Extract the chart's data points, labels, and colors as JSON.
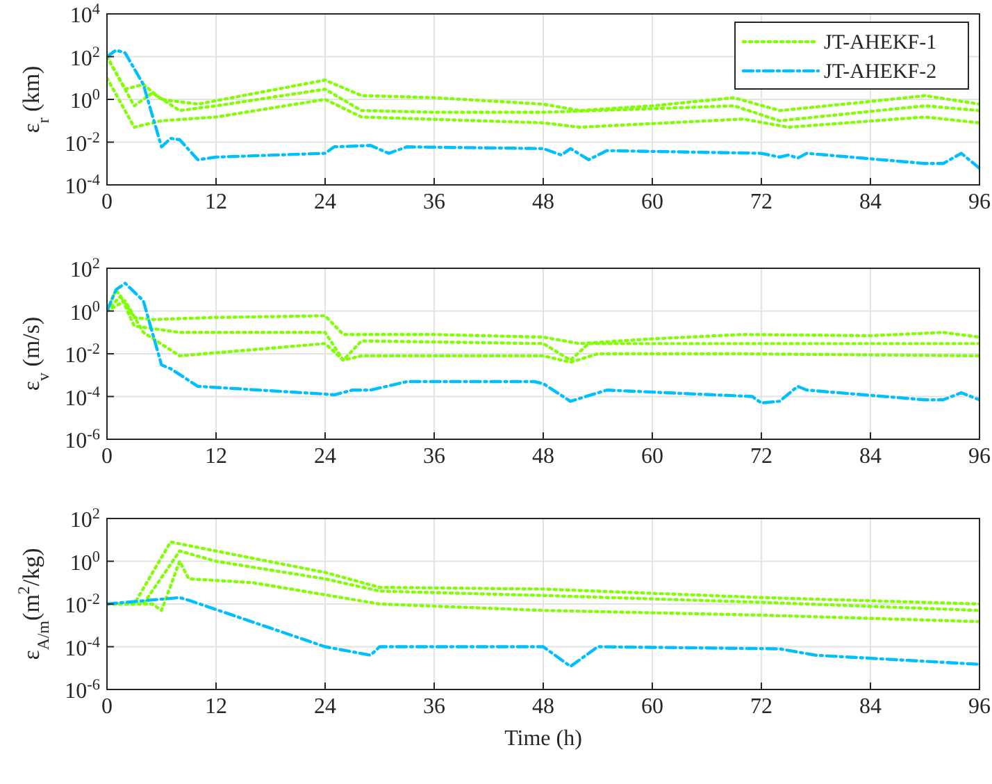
{
  "chart_data": [
    {
      "type": "line",
      "ylabel": "ε$_{r}$  (km)",
      "log": "y",
      "grid": true,
      "legend": "top right",
      "xlim": [
        0,
        96
      ],
      "xticks": [
        0,
        12,
        24,
        36,
        48,
        60,
        72,
        84,
        96
      ],
      "ylim": [
        0.0001,
        10000
      ],
      "yticks": [
        {
          "value": 0.0001,
          "label": "10$^{-4}$"
        },
        {
          "value": 0.01,
          "label": "10$^{-2}$"
        },
        {
          "value": 1,
          "label": "10$^{0}$"
        },
        {
          "value": 100,
          "label": "10$^{2}$"
        },
        {
          "value": 10000,
          "label": "10$^{4}$"
        }
      ],
      "series": [
        {
          "name": "JT-AHEKF-1",
          "color": "#7fff00",
          "line_style": "dotted",
          "x": [
            0,
            3,
            5,
            8,
            12,
            24,
            28,
            36,
            48,
            54,
            69,
            74,
            90,
            96
          ],
          "values": [
            100,
            0.5,
            2,
            0.3,
            0.5,
            3,
            0.3,
            0.25,
            0.25,
            0.3,
            0.5,
            0.1,
            0.5,
            0.3
          ]
        },
        {
          "color": "#7fff00",
          "line_style": "dotted",
          "x": [
            0,
            2,
            4,
            6,
            10,
            24,
            28,
            36,
            48,
            52,
            60,
            69,
            74,
            84,
            90,
            96
          ],
          "values": [
            100,
            3,
            5,
            1,
            0.6,
            8,
            1.5,
            1.2,
            0.6,
            0.3,
            0.5,
            1.2,
            0.3,
            0.8,
            1.5,
            0.6
          ]
        },
        {
          "color": "#7fff00",
          "line_style": "dotted",
          "x": [
            0,
            3,
            6,
            12,
            24,
            28,
            48,
            52,
            70,
            75,
            90,
            96
          ],
          "values": [
            10,
            0.05,
            0.1,
            0.15,
            1,
            0.15,
            0.08,
            0.05,
            0.12,
            0.05,
            0.15,
            0.08
          ]
        },
        {
          "name": "JT-AHEKF-2",
          "color": "#00bfff",
          "line_style": "dashed",
          "x": [
            0,
            1,
            2,
            4,
            6,
            7,
            8,
            10,
            12,
            24,
            25,
            29,
            31,
            33,
            48,
            50,
            51,
            53,
            55,
            72,
            74,
            75,
            76,
            77,
            90,
            92,
            94,
            96
          ],
          "values": [
            100,
            200,
            150,
            5,
            0.006,
            0.015,
            0.013,
            0.0015,
            0.002,
            0.003,
            0.006,
            0.007,
            0.003,
            0.006,
            0.005,
            0.0025,
            0.005,
            0.0015,
            0.004,
            0.003,
            0.002,
            0.0025,
            0.0018,
            0.003,
            0.001,
            0.001,
            0.003,
            0.0006
          ]
        }
      ]
    },
    {
      "type": "line",
      "ylabel": "ε$_{v}$  (m/s)",
      "log": "y",
      "grid": true,
      "xlim": [
        0,
        96
      ],
      "xticks": [
        0,
        12,
        24,
        36,
        48,
        60,
        72,
        84,
        96
      ],
      "ylim": [
        1e-06,
        100
      ],
      "yticks": [
        {
          "value": 1e-06,
          "label": "10$^{-6}$"
        },
        {
          "value": 0.0001,
          "label": "10$^{-4}$"
        },
        {
          "value": 0.01,
          "label": "10$^{-2}$"
        },
        {
          "value": 1,
          "label": "10$^{0}$"
        },
        {
          "value": 100,
          "label": "10$^{2}$"
        }
      ],
      "series": [
        {
          "color": "#7fff00",
          "line_style": "dotted",
          "x": [
            0,
            1,
            3,
            5,
            12,
            24,
            26,
            36,
            48,
            52,
            60,
            70,
            84,
            92,
            96
          ],
          "values": [
            1,
            10,
            0.5,
            0.4,
            0.5,
            0.6,
            0.08,
            0.08,
            0.06,
            0.03,
            0.05,
            0.08,
            0.07,
            0.1,
            0.06
          ]
        },
        {
          "color": "#7fff00",
          "line_style": "dotted",
          "x": [
            0,
            1.5,
            3,
            8,
            24,
            26,
            28,
            48,
            51,
            53,
            96
          ],
          "values": [
            1,
            5,
            0.2,
            0.1,
            0.1,
            0.005,
            0.04,
            0.03,
            0.005,
            0.03,
            0.03
          ]
        },
        {
          "color": "#7fff00",
          "line_style": "dotted",
          "x": [
            0,
            2,
            4,
            8,
            24,
            26,
            28,
            48,
            51,
            54,
            70,
            96
          ],
          "values": [
            1,
            3,
            0.1,
            0.008,
            0.03,
            0.005,
            0.008,
            0.008,
            0.004,
            0.01,
            0.01,
            0.008
          ]
        },
        {
          "color": "#00bfff",
          "line_style": "dashed",
          "x": [
            0,
            1,
            2,
            4,
            6,
            7,
            10,
            24,
            25,
            27,
            29,
            33,
            47,
            48,
            51,
            55,
            71,
            72,
            74,
            76,
            77,
            90,
            92,
            94,
            96
          ],
          "values": [
            1,
            10,
            20,
            3,
            0.003,
            0.002,
            0.0003,
            0.00013,
            0.00012,
            0.0002,
            0.0002,
            0.0005,
            0.0005,
            0.0004,
            6e-05,
            0.0002,
            0.0001,
            5e-05,
            6e-05,
            0.0003,
            0.0002,
            7e-05,
            7e-05,
            0.00015,
            7e-05
          ]
        }
      ]
    },
    {
      "type": "line",
      "xlabel": "Time (h)",
      "ylabel": "ε$_{A/m}$(m$^{2}$/kg)",
      "log": "y",
      "grid": true,
      "xlim": [
        0,
        96
      ],
      "xticks": [
        0,
        12,
        24,
        36,
        48,
        60,
        72,
        84,
        96
      ],
      "ylim": [
        1e-06,
        100
      ],
      "yticks": [
        {
          "value": 1e-06,
          "label": "10$^{-6}$"
        },
        {
          "value": 0.0001,
          "label": "10$^{-4}$"
        },
        {
          "value": 0.01,
          "label": "10$^{-2}$"
        },
        {
          "value": 1,
          "label": "10$^{0}$"
        },
        {
          "value": 100,
          "label": "10$^{2}$"
        }
      ],
      "series": [
        {
          "color": "#7fff00",
          "line_style": "dotted",
          "x": [
            0,
            3,
            7,
            12,
            24,
            30,
            48,
            72,
            96
          ],
          "values": [
            0.01,
            0.01,
            8,
            3,
            0.3,
            0.06,
            0.05,
            0.02,
            0.01
          ]
        },
        {
          "color": "#7fff00",
          "line_style": "dotted",
          "x": [
            0,
            4,
            8,
            12,
            24,
            30,
            48,
            72,
            96
          ],
          "values": [
            0.01,
            0.01,
            3,
            1,
            0.15,
            0.04,
            0.025,
            0.012,
            0.005
          ]
        },
        {
          "color": "#7fff00",
          "line_style": "dotted",
          "x": [
            0,
            5,
            6,
            8,
            9,
            16,
            30,
            48,
            72,
            96
          ],
          "values": [
            0.01,
            0.01,
            0.005,
            1,
            0.15,
            0.1,
            0.01,
            0.005,
            0.003,
            0.0015
          ]
        },
        {
          "color": "#00bfff",
          "line_style": "dashed",
          "x": [
            0,
            8,
            9,
            24,
            29,
            30,
            48,
            51,
            54,
            74,
            78,
            96
          ],
          "values": [
            0.01,
            0.02,
            0.015,
            0.0001,
            4e-05,
            0.0001,
            0.0001,
            1.2e-05,
            0.0001,
            8e-05,
            4e-05,
            1.5e-05
          ]
        }
      ]
    }
  ]
}
